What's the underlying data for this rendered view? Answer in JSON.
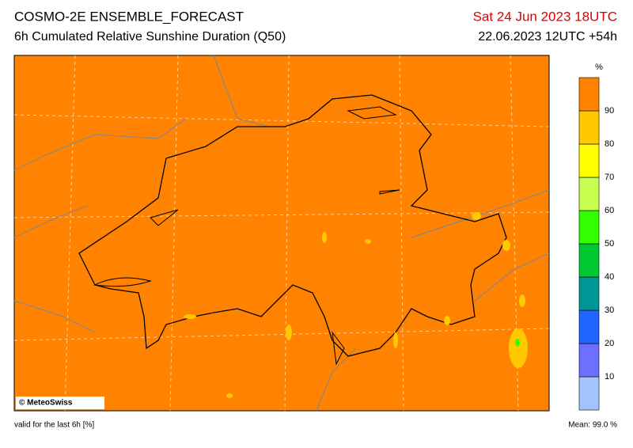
{
  "header": {
    "title": "COSMO-2E ENSEMBLE_FORECAST",
    "subtitle": "6h Cumulated Relative Sunshine Duration (Q50)",
    "valid_time": "Sat 24 Jun 2023 18UTC",
    "run_info": "22.06.2023 12UTC +54h"
  },
  "map": {
    "credit": "© MeteoSwiss"
  },
  "colorbar": {
    "unit": "%",
    "ticks": [
      10,
      20,
      30,
      40,
      50,
      60,
      70,
      80,
      90
    ],
    "colors": [
      "#a5c3ff",
      "#6e6eff",
      "#1e64ff",
      "#009696",
      "#00c832",
      "#32ff00",
      "#c8ff50",
      "#ffff00",
      "#ffc800",
      "#ff8200"
    ]
  },
  "footer": {
    "note": "valid for the last 6h [%]",
    "mean": "Mean:  99.0 %"
  }
}
